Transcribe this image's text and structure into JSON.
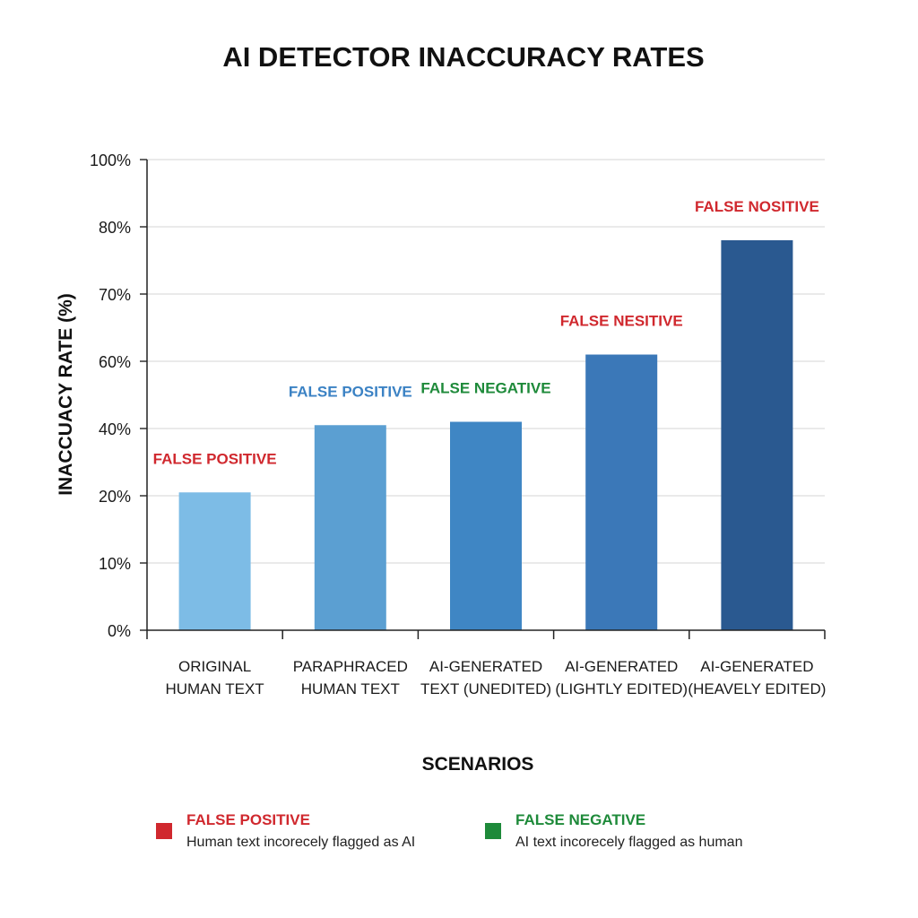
{
  "chart_data": {
    "type": "bar",
    "title": "AI DETECTOR INACCURACY RATES",
    "xlabel": "SCENARIOS",
    "ylabel": "INACCUACY RATE (%)",
    "y_tick_labels": [
      "0%",
      "10%",
      "20%",
      "40%",
      "60%",
      "70%",
      "80%",
      "100%"
    ],
    "grid": true,
    "categories": [
      [
        "ORIGINAL",
        "HUMAN TEXT"
      ],
      [
        "PARAPHRACED",
        "HUMAN TEXT"
      ],
      [
        "AI-GENERATED",
        "TEXT (UNEDITED)"
      ],
      [
        "AI-GENERATED",
        "(LIGHTLY EDITED)"
      ],
      [
        "AI-GENERATED",
        "(HEAVELY EDITED)"
      ]
    ],
    "values": [
      21,
      41,
      42,
      61,
      78
    ],
    "bar_colors": [
      "#7dbce6",
      "#5b9fd2",
      "#3f86c4",
      "#3b78b8",
      "#2a5990"
    ],
    "annotations": [
      {
        "text": "FALSE POSITIVE",
        "color": "#d0282e"
      },
      {
        "text": "FALSE POSITIVE",
        "color": "#3b82c4"
      },
      {
        "text": "FALSE NEGATIVE",
        "color": "#1e8a3a"
      },
      {
        "text": "FALSE NESITIVE",
        "color": "#d0282e"
      },
      {
        "text": "FALSE NOSITIVE",
        "color": "#d0282e"
      }
    ],
    "legend": [
      {
        "label": "FALSE POSITIVE",
        "description": "Human text incorecely flagged as AI",
        "color": "#d0282e"
      },
      {
        "label": "FALSE NEGATIVE",
        "description": "AI text incorecely flagged as human",
        "color": "#1e8a3a"
      }
    ],
    "legend_position": "bottom"
  }
}
